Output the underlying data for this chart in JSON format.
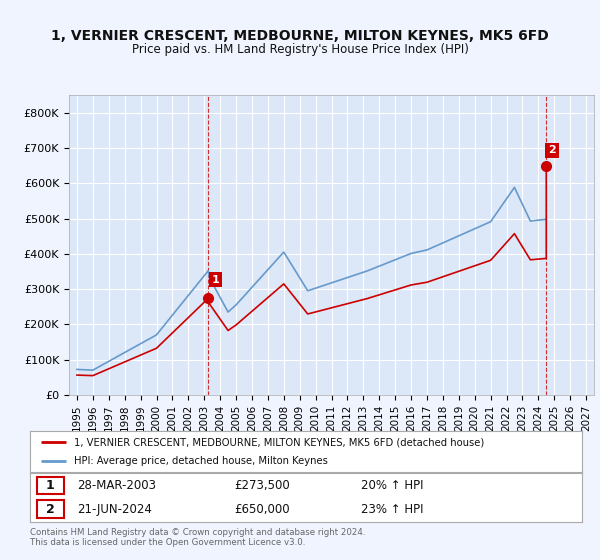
{
  "title": "1, VERNIER CRESCENT, MEDBOURNE, MILTON KEYNES, MK5 6FD",
  "subtitle": "Price paid vs. HM Land Registry's House Price Index (HPI)",
  "background_color": "#f0f4ff",
  "plot_bg_color": "#dce8f8",
  "red_color": "#cc0000",
  "blue_color": "#6699cc",
  "grid_color": "#ffffff",
  "ylim": [
    0,
    850000
  ],
  "yticks": [
    0,
    100000,
    200000,
    300000,
    400000,
    500000,
    600000,
    700000,
    800000
  ],
  "ytick_labels": [
    "£0",
    "£100K",
    "£200K",
    "£300K",
    "£400K",
    "£500K",
    "£600K",
    "£700K",
    "£800K"
  ],
  "legend_line1": "1, VERNIER CRESCENT, MEDBOURNE, MILTON KEYNES, MK5 6FD (detached house)",
  "legend_line2": "HPI: Average price, detached house, Milton Keynes",
  "label1_date": "28-MAR-2003",
  "label1_price": "£273,500",
  "label1_hpi": "20% ↑ HPI",
  "label2_date": "21-JUN-2024",
  "label2_price": "£650,000",
  "label2_hpi": "23% ↑ HPI",
  "footer": "Contains HM Land Registry data © Crown copyright and database right 2024.\nThis data is licensed under the Open Government Licence v3.0.",
  "sale1_year": 2003.23,
  "sale1_price": 273500,
  "sale2_year": 2024.47,
  "sale2_price": 650000,
  "xlim_left": 1994.5,
  "xlim_right": 2027.5
}
